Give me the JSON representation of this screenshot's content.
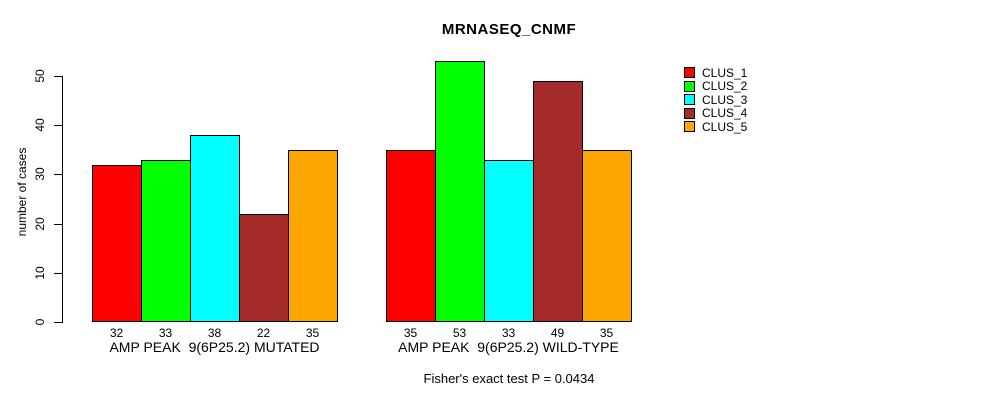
{
  "chart_data": {
    "type": "bar",
    "title": "MRNASEQ_CNMF",
    "subtitle": "Fisher's exact test P = 0.0434",
    "xlabel": "",
    "ylabel": "number of cases",
    "ylim": [
      0,
      50
    ],
    "yticks": [
      0,
      10,
      20,
      30,
      40,
      50
    ],
    "grid": false,
    "legend_position": "top-right",
    "bar_value_labels_shown": true,
    "categories": [
      "AMP PEAK  9(6P25.2) MUTATED",
      "AMP PEAK  9(6P25.2) WILD-TYPE"
    ],
    "series": [
      {
        "name": "CLUS_1",
        "color": "#ff0000",
        "values": [
          32,
          35
        ]
      },
      {
        "name": "CLUS_2",
        "color": "#00ff00",
        "values": [
          33,
          53
        ]
      },
      {
        "name": "CLUS_3",
        "color": "#00ffff",
        "values": [
          38,
          33
        ]
      },
      {
        "name": "CLUS_4",
        "color": "#a52a2a",
        "values": [
          22,
          49
        ]
      },
      {
        "name": "CLUS_5",
        "color": "#ffa500",
        "values": [
          35,
          35
        ]
      }
    ]
  }
}
